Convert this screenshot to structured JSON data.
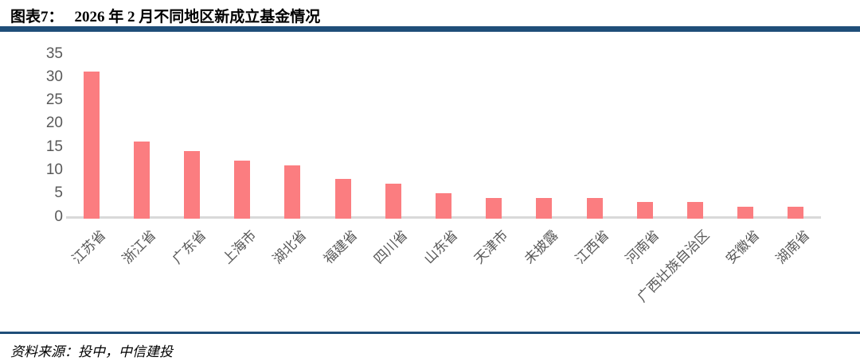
{
  "header": {
    "figure_label": "图表7：",
    "title": "2026 年 2 月不同地区新成立基金情况"
  },
  "footer": {
    "source": "资料来源：投中，中信建投"
  },
  "colors": {
    "rule_navy": "#1F4E79",
    "bar": "#FB7D80",
    "axis_label": "#595959",
    "baseline": "#D9D9D9",
    "title_text": "#000000"
  },
  "chart_data": {
    "type": "bar",
    "title": "2026 年 2 月不同地区新成立基金情况",
    "categories": [
      "江苏省",
      "浙江省",
      "广东省",
      "上海市",
      "湖北省",
      "福建省",
      "四川省",
      "山东省",
      "天津市",
      "未披露",
      "江西省",
      "河南省",
      "广西壮族自治区",
      "安徽省",
      "湖南省"
    ],
    "values": [
      31,
      16,
      14,
      12,
      11,
      8,
      7,
      5,
      4,
      4,
      4,
      3,
      3,
      2,
      2
    ],
    "xlabel": "",
    "ylabel": "",
    "ylim": [
      0,
      35
    ],
    "yticks": [
      0,
      5,
      10,
      15,
      20,
      25,
      30,
      35
    ],
    "grid": false,
    "legend": null,
    "bar_color": "#FB7D80",
    "x_tick_rotation_deg": 45
  }
}
